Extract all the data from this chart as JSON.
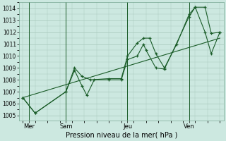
{
  "bg_color": "#cce8e0",
  "grid_color": "#a8c8bc",
  "line_color": "#1a5c28",
  "xlabel": "Pression niveau de la mer( hPa )",
  "ylim": [
    1004.6,
    1014.4
  ],
  "yticks": [
    1005,
    1006,
    1007,
    1008,
    1009,
    1010,
    1011,
    1012,
    1013,
    1014
  ],
  "xlim": [
    -0.3,
    16.3
  ],
  "xtick_labels": [
    "Mer",
    "Sam",
    "Jeu",
    "Ven"
  ],
  "xtick_positions": [
    0.5,
    3.5,
    8.5,
    13.5
  ],
  "vline_positions": [
    0.5,
    3.5,
    8.5,
    13.5
  ],
  "series1_x": [
    0.0,
    1.0,
    3.5,
    4.2,
    4.8,
    5.5,
    7.0,
    8.0,
    8.5,
    9.3,
    9.8,
    10.3,
    10.8,
    11.5,
    12.5,
    13.5,
    14.0,
    14.8,
    15.3,
    16.0
  ],
  "series1_y": [
    1006.5,
    1005.2,
    1007.0,
    1009.0,
    1008.3,
    1008.0,
    1008.1,
    1008.1,
    1010.0,
    1011.1,
    1011.5,
    1011.5,
    1010.2,
    1009.0,
    1011.0,
    1013.5,
    1014.1,
    1014.1,
    1011.9,
    1012.0
  ],
  "series2_x": [
    0.0,
    1.0,
    3.5,
    4.2,
    4.8,
    5.2,
    5.8,
    7.0,
    8.0,
    8.5,
    9.3,
    9.8,
    10.0,
    10.8,
    11.5,
    13.5,
    14.0,
    14.8,
    15.3,
    16.0
  ],
  "series2_y": [
    1006.5,
    1005.2,
    1007.0,
    1008.8,
    1007.5,
    1006.7,
    1008.0,
    1008.0,
    1008.0,
    1009.7,
    1010.0,
    1011.0,
    1010.5,
    1009.0,
    1008.9,
    1013.3,
    1014.1,
    1012.0,
    1010.2,
    1012.0
  ],
  "trend_x": [
    0.0,
    16.0
  ],
  "trend_y": [
    1006.5,
    1011.5
  ]
}
